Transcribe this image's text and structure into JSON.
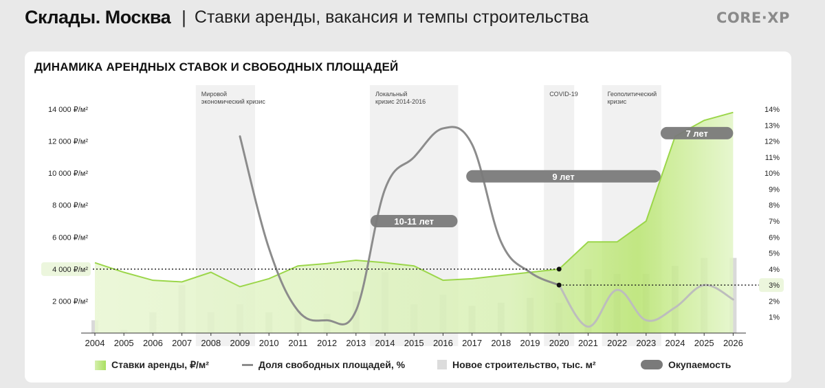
{
  "header": {
    "title": "Склады. Москва",
    "separator": "|",
    "subtitle": "Ставки аренды, вакансия  и темпы строительства",
    "logo": "CORE·XP"
  },
  "chart_data": {
    "type": "bar+line+area",
    "title": "ДИНАМИКА АРЕНДНЫХ СТАВОК И СВОБОДНЫХ ПЛОЩАДЕЙ",
    "categories": [
      "2004",
      "2005",
      "2006",
      "2007",
      "2008",
      "2009",
      "2010",
      "2011",
      "2012",
      "2013",
      "2014",
      "2015",
      "2016",
      "2017",
      "2018",
      "2019",
      "2020",
      "2021",
      "2022",
      "2023",
      "2024",
      "2025",
      "2026"
    ],
    "y_left": {
      "min": 0,
      "max": 14000,
      "ticks": [
        2000,
        4000,
        6000,
        8000,
        10000,
        12000,
        14000
      ],
      "tick_labels": [
        "2 000 ₽/м²",
        "4 000 ₽/м²",
        "6 000 ₽/м²",
        "8 000 ₽/м²",
        "10 000 ₽/м²",
        "12 000 ₽/м²",
        "14 000 ₽/м²"
      ]
    },
    "y_right": {
      "min": 0,
      "max": 14,
      "ticks": [
        1,
        2,
        3,
        4,
        5,
        6,
        7,
        8,
        9,
        10,
        11,
        12,
        13,
        14
      ],
      "tick_labels": [
        "1%",
        "2%",
        "3%",
        "4%",
        "5%",
        "6%",
        "7%",
        "8%",
        "9%",
        "10%",
        "11%",
        "12%",
        "13%",
        "14%"
      ]
    },
    "series": [
      {
        "name": "Ставки аренды, ₽/м²",
        "type": "area",
        "axis": "left",
        "values": [
          4400,
          3800,
          3300,
          3200,
          3800,
          2900,
          3400,
          4200,
          4350,
          4550,
          4400,
          4200,
          3300,
          3400,
          3600,
          3800,
          4000,
          5700,
          5700,
          7000,
          12300,
          13300,
          13800
        ]
      },
      {
        "name": "Доля свободных площадей, %",
        "type": "line",
        "axis": "right",
        "x": [
          2009,
          2010,
          2011,
          2012,
          2013,
          2014,
          2015,
          2016,
          2017,
          2018,
          2019,
          2020
        ],
        "values": [
          12.3,
          5.3,
          1.4,
          0.8,
          1.4,
          9.0,
          11.0,
          12.8,
          11.8,
          5.7,
          3.8,
          3.0
        ]
      },
      {
        "name": "Доля свободных площадей, %",
        "type": "line",
        "axis": "right",
        "style": "light",
        "x": [
          2020,
          2021,
          2022,
          2023,
          2024,
          2025,
          2026
        ],
        "values": [
          3.0,
          0.4,
          2.7,
          0.8,
          1.6,
          3.0,
          2.1
        ]
      },
      {
        "name": "Новое строительство, тыс. м²",
        "type": "bar",
        "axis": "left",
        "values": [
          800,
          200,
          1300,
          3000,
          1300,
          1800,
          1300,
          1400,
          1200,
          2600,
          3800,
          1800,
          2400,
          1700,
          1900,
          2200,
          1900,
          4000,
          3700,
          3700,
          4200,
          4700,
          4700
        ]
      }
    ],
    "crisis_periods": [
      {
        "label": "Мировой\nэкономический кризис",
        "from": 2008,
        "to": 2009
      },
      {
        "label": "Локальный\nкризис 2014-2016",
        "from": 2014,
        "to": 2016
      },
      {
        "label": "COVID-19",
        "from": 2020,
        "to": 2020
      },
      {
        "label": "Геополитический\nкризис",
        "from": 2022,
        "to": 2023
      }
    ],
    "payback": [
      {
        "label": "10-11 лет",
        "from": 2013.5,
        "to": 2016.5,
        "level": 7.0
      },
      {
        "label": "9 лет",
        "from": 2016.8,
        "to": 2023.5,
        "level": 9.8
      },
      {
        "label": "7 лет",
        "from": 2023.5,
        "to": 2026,
        "level": 12.5
      }
    ],
    "markers": [
      {
        "label": "4 000 ₽/м²",
        "axis": "left",
        "value": 4000,
        "x": 2020
      },
      {
        "label": "3%",
        "axis": "right",
        "value": 3,
        "x": 2020
      }
    ],
    "legend": [
      {
        "label": "Ставки аренды, ₽/м²",
        "color": "#a9e060"
      },
      {
        "label": "Доля свободных площадей, %",
        "color": "#8c8c8c"
      },
      {
        "label": "Новое строительство, тыс. м²",
        "color": "#dcdcdc"
      },
      {
        "label": "Окупаемость",
        "color": "#7a7a7a"
      }
    ],
    "colors": {
      "area": "#b6e46a",
      "area_dark": "#9bd64a",
      "line": "#8c8c8c",
      "line_light": "#bdbdbd",
      "bar": "#d9d9d9",
      "pill": "#7a7a7a",
      "band": "#f0f0f0",
      "marker_bg": "#ecf6dd"
    }
  }
}
